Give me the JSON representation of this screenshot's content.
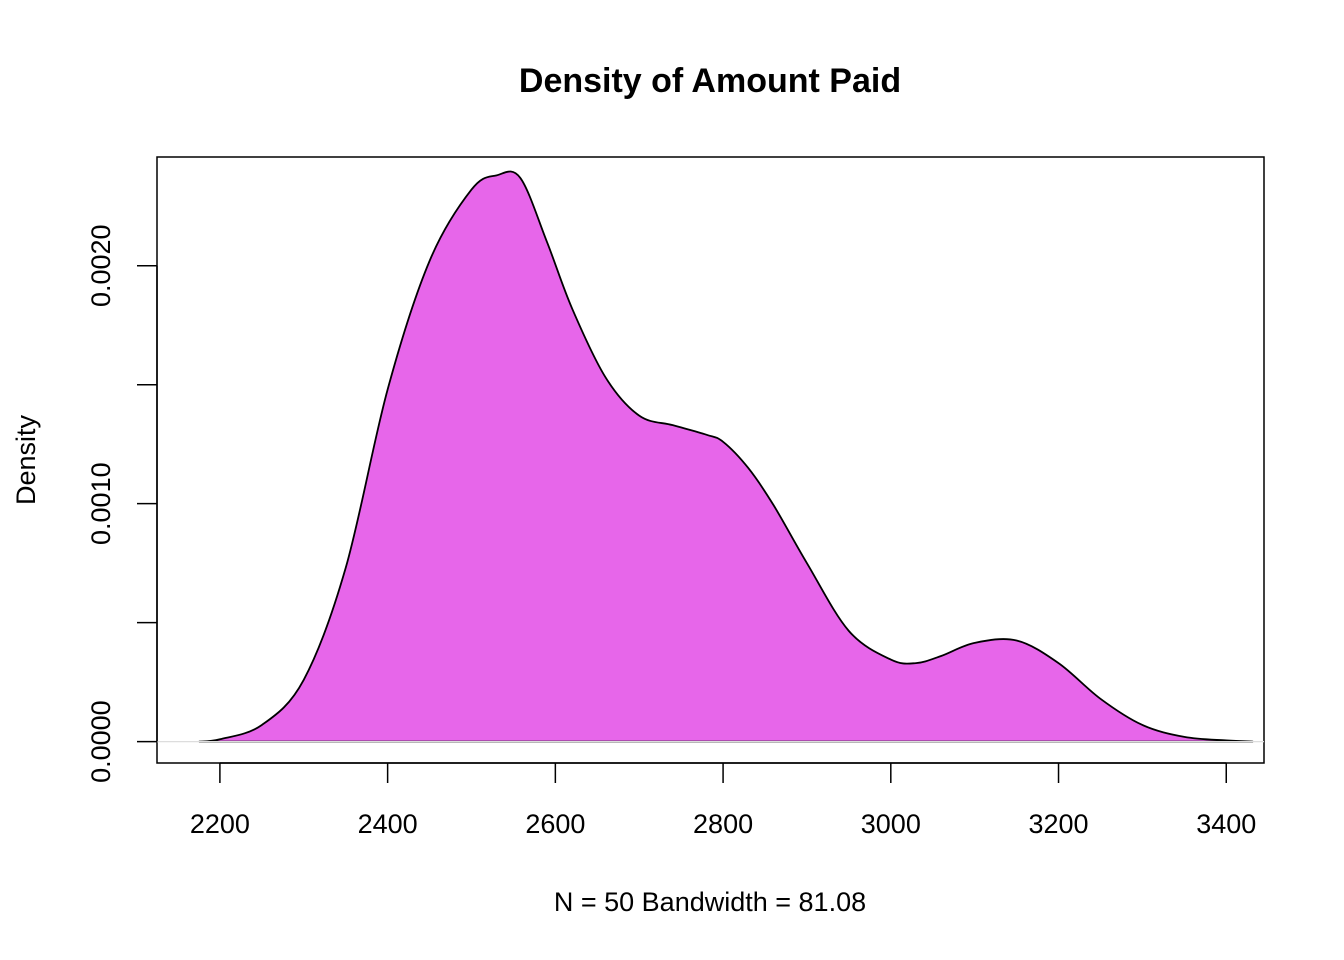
{
  "chart_data": {
    "type": "area",
    "title": "Density of Amount Paid",
    "xlabel": "N = 50   Bandwidth = 81.08",
    "ylabel": "Density",
    "xlim": [
      2125,
      3445
    ],
    "ylim": [
      -8.98e-05,
      0.002457
    ],
    "x_ticks": [
      2200,
      2400,
      2600,
      2800,
      3000,
      3200,
      3400
    ],
    "x_tick_labels": [
      "2200",
      "2400",
      "2600",
      "2800",
      "3000",
      "3200",
      "3400"
    ],
    "y_ticks": [
      0.0,
      0.0005,
      0.001,
      0.0015,
      0.002
    ],
    "y_tick_labels": [
      "0.0000",
      "",
      "0.0010",
      "",
      "0.0020"
    ],
    "fill_color": "#e766ea",
    "line_color": "#000000",
    "grid": false,
    "series": [
      {
        "x": [
          2175,
          2200,
          2250,
          2300,
          2350,
          2400,
          2450,
          2500,
          2530,
          2558,
          2590,
          2620,
          2660,
          2700,
          2740,
          2780,
          2800,
          2830,
          2860,
          2900,
          2950,
          3000,
          3030,
          3060,
          3100,
          3150,
          3200,
          3250,
          3300,
          3350,
          3400,
          3432
        ],
        "y": [
          0.0,
          1e-05,
          7e-05,
          0.00026,
          0.00073,
          0.00148,
          0.00202,
          0.00232,
          0.00238,
          0.00237,
          0.0021,
          0.00182,
          0.00153,
          0.00137,
          0.00133,
          0.00129,
          0.00126,
          0.00115,
          0.000995,
          0.00075,
          0.000465,
          0.000345,
          0.00033,
          0.00036,
          0.000415,
          0.000425,
          0.00033,
          0.00018,
          7e-05,
          2e-05,
          5e-06,
          0.0
        ]
      }
    ]
  }
}
